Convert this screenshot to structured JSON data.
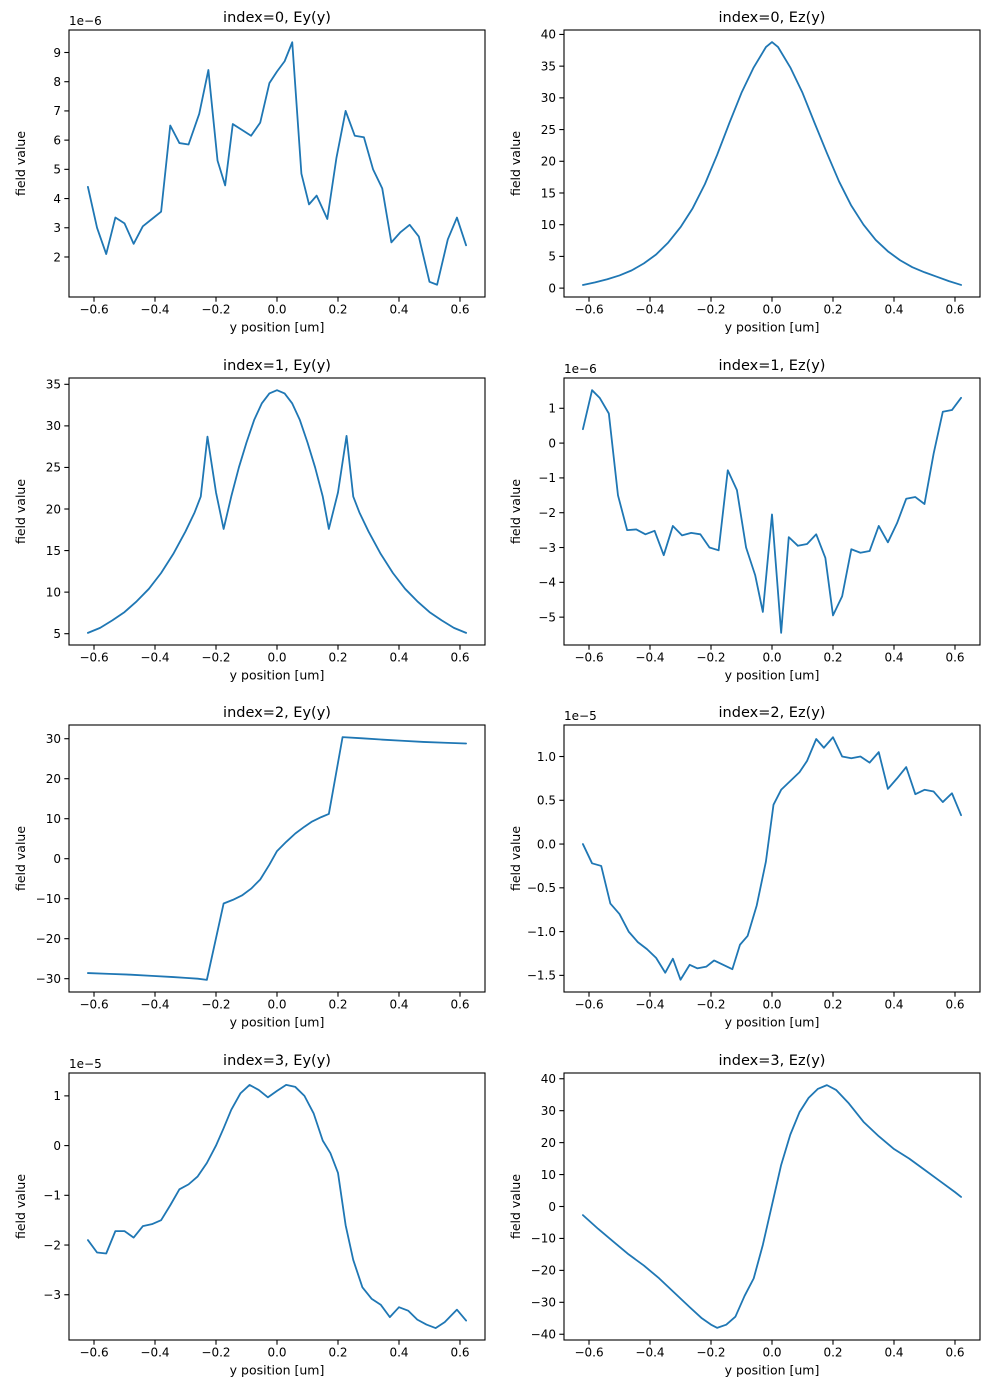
{
  "figure": {
    "background": "#ffffff",
    "text_color": "#000000",
    "line_color": "#1f77b4",
    "xticks": [
      -0.6,
      -0.4,
      -0.2,
      0.0,
      0.2,
      0.4,
      0.6
    ],
    "xtick_labels": [
      "−0.6",
      "−0.4",
      "−0.2",
      "0.0",
      "0.2",
      "0.4",
      "0.6"
    ]
  },
  "chart_data": [
    {
      "type": "line",
      "title": "index=0, Ey(y)",
      "xlabel": "y position [um]",
      "ylabel": "field value",
      "offset_label": "1e−6",
      "unit_scale": "1e-6",
      "legend": null,
      "grid": false,
      "xlim": [
        -0.682,
        0.682
      ],
      "ylim": [
        0.63,
        9.77
      ],
      "yticks": [
        2,
        3,
        4,
        5,
        6,
        7,
        8,
        9
      ],
      "ytick_labels": [
        "2",
        "3",
        "4",
        "5",
        "6",
        "7",
        "8",
        "9"
      ],
      "x": [
        -0.62,
        -0.59,
        -0.56,
        -0.53,
        -0.5,
        -0.47,
        -0.44,
        -0.41,
        -0.38,
        -0.35,
        -0.32,
        -0.29,
        -0.255,
        -0.225,
        -0.195,
        -0.17,
        -0.145,
        -0.115,
        -0.085,
        -0.055,
        -0.025,
        0.0,
        0.025,
        0.05,
        0.08,
        0.105,
        0.13,
        0.165,
        0.195,
        0.225,
        0.255,
        0.285,
        0.315,
        0.345,
        0.375,
        0.405,
        0.435,
        0.465,
        0.5,
        0.525,
        0.56,
        0.59,
        0.62
      ],
      "y": [
        4.4,
        3.0,
        2.1,
        3.35,
        3.15,
        2.45,
        3.05,
        3.3,
        3.55,
        6.5,
        5.9,
        5.85,
        6.9,
        8.4,
        5.3,
        4.45,
        6.55,
        6.35,
        6.15,
        6.6,
        7.95,
        8.35,
        8.7,
        9.35,
        4.85,
        3.8,
        4.1,
        3.3,
        5.4,
        7.0,
        6.15,
        6.1,
        5.0,
        4.35,
        2.5,
        2.85,
        3.1,
        2.7,
        1.15,
        1.05,
        2.6,
        3.35,
        2.4
      ]
    },
    {
      "type": "line",
      "title": "index=0, Ez(y)",
      "xlabel": "y position [um]",
      "ylabel": "field value",
      "offset_label": null,
      "unit_scale": "1",
      "legend": null,
      "grid": false,
      "xlim": [
        -0.682,
        0.682
      ],
      "ylim": [
        -1.4,
        40.7
      ],
      "yticks": [
        0,
        5,
        10,
        15,
        20,
        25,
        30,
        35,
        40
      ],
      "ytick_labels": [
        "0",
        "5",
        "10",
        "15",
        "20",
        "25",
        "30",
        "35",
        "40"
      ],
      "x": [
        -0.62,
        -0.58,
        -0.54,
        -0.5,
        -0.46,
        -0.42,
        -0.38,
        -0.34,
        -0.3,
        -0.26,
        -0.22,
        -0.18,
        -0.14,
        -0.1,
        -0.06,
        -0.02,
        0.0,
        0.02,
        0.06,
        0.1,
        0.14,
        0.18,
        0.22,
        0.26,
        0.3,
        0.34,
        0.38,
        0.42,
        0.46,
        0.5,
        0.54,
        0.58,
        0.62
      ],
      "y": [
        0.5,
        0.9,
        1.4,
        2.0,
        2.8,
        3.9,
        5.3,
        7.2,
        9.6,
        12.6,
        16.4,
        21.0,
        26.0,
        30.8,
        34.8,
        38.0,
        38.8,
        38.0,
        34.8,
        30.8,
        26.0,
        21.3,
        16.8,
        13.0,
        10.0,
        7.6,
        5.8,
        4.4,
        3.3,
        2.5,
        1.8,
        1.1,
        0.5
      ]
    },
    {
      "type": "line",
      "title": "index=1, Ey(y)",
      "xlabel": "y position [um]",
      "ylabel": "field value",
      "offset_label": null,
      "unit_scale": "1",
      "legend": null,
      "grid": false,
      "xlim": [
        -0.682,
        0.682
      ],
      "ylim": [
        3.64,
        35.76
      ],
      "yticks": [
        5,
        10,
        15,
        20,
        25,
        30,
        35
      ],
      "ytick_labels": [
        "5",
        "10",
        "15",
        "20",
        "25",
        "30",
        "35"
      ],
      "x": [
        -0.62,
        -0.58,
        -0.54,
        -0.5,
        -0.46,
        -0.42,
        -0.38,
        -0.34,
        -0.3,
        -0.27,
        -0.25,
        -0.228,
        -0.2,
        -0.175,
        -0.15,
        -0.125,
        -0.1,
        -0.075,
        -0.05,
        -0.025,
        0.0,
        0.025,
        0.05,
        0.075,
        0.1,
        0.125,
        0.15,
        0.17,
        0.2,
        0.228,
        0.25,
        0.27,
        0.3,
        0.34,
        0.38,
        0.42,
        0.46,
        0.5,
        0.54,
        0.58,
        0.62
      ],
      "y": [
        5.1,
        5.7,
        6.6,
        7.6,
        8.9,
        10.4,
        12.3,
        14.6,
        17.3,
        19.6,
        21.5,
        28.7,
        22.0,
        17.6,
        21.5,
        25.0,
        28.0,
        30.7,
        32.7,
        33.9,
        34.3,
        33.9,
        32.7,
        30.7,
        28.0,
        25.0,
        21.5,
        17.6,
        22.0,
        28.8,
        21.5,
        19.6,
        17.3,
        14.6,
        12.3,
        10.4,
        8.9,
        7.6,
        6.6,
        5.7,
        5.1
      ]
    },
    {
      "type": "line",
      "title": "index=1, Ez(y)",
      "xlabel": "y position [um]",
      "ylabel": "field value",
      "offset_label": "1e−6",
      "unit_scale": "1e-6",
      "legend": null,
      "grid": false,
      "xlim": [
        -0.682,
        0.682
      ],
      "ylim": [
        -5.8,
        1.87
      ],
      "yticks": [
        -5,
        -4,
        -3,
        -2,
        -1,
        0,
        1
      ],
      "ytick_labels": [
        "−5",
        "−4",
        "−3",
        "−2",
        "−1",
        "0",
        "1"
      ],
      "x": [
        -0.62,
        -0.59,
        -0.565,
        -0.535,
        -0.505,
        -0.475,
        -0.445,
        -0.415,
        -0.385,
        -0.355,
        -0.325,
        -0.295,
        -0.265,
        -0.235,
        -0.205,
        -0.175,
        -0.145,
        -0.115,
        -0.085,
        -0.055,
        -0.03,
        0.0,
        0.03,
        0.055,
        0.085,
        0.115,
        0.145,
        0.175,
        0.2,
        0.23,
        0.26,
        0.29,
        0.32,
        0.35,
        0.38,
        0.41,
        0.44,
        0.47,
        0.5,
        0.53,
        0.56,
        0.59,
        0.62
      ],
      "y": [
        0.4,
        1.52,
        1.3,
        0.85,
        -1.5,
        -2.5,
        -2.48,
        -2.62,
        -2.52,
        -3.22,
        -2.38,
        -2.65,
        -2.58,
        -2.62,
        -3.0,
        -3.08,
        -0.78,
        -1.35,
        -3.0,
        -3.8,
        -4.85,
        -2.05,
        -5.45,
        -2.7,
        -2.95,
        -2.9,
        -2.62,
        -3.3,
        -4.95,
        -4.4,
        -3.05,
        -3.15,
        -3.1,
        -2.38,
        -2.85,
        -2.3,
        -1.6,
        -1.55,
        -1.75,
        -0.3,
        0.9,
        0.95,
        1.3
      ]
    },
    {
      "type": "line",
      "title": "index=2, Ey(y)",
      "xlabel": "y position [um]",
      "ylabel": "field value",
      "offset_label": null,
      "unit_scale": "1",
      "legend": null,
      "grid": false,
      "xlim": [
        -0.682,
        0.682
      ],
      "ylim": [
        -33.33,
        33.43
      ],
      "yticks": [
        -30,
        -20,
        -10,
        0,
        10,
        20,
        30
      ],
      "ytick_labels": [
        "−30",
        "−20",
        "−10",
        "0",
        "10",
        "20",
        "30"
      ],
      "x": [
        -0.62,
        -0.55,
        -0.48,
        -0.41,
        -0.34,
        -0.3,
        -0.26,
        -0.23,
        -0.175,
        -0.145,
        -0.115,
        -0.085,
        -0.055,
        -0.025,
        0.0,
        0.03,
        0.06,
        0.09,
        0.115,
        0.145,
        0.17,
        0.215,
        0.28,
        0.34,
        0.41,
        0.48,
        0.55,
        0.62
      ],
      "y": [
        -28.6,
        -28.8,
        -29.0,
        -29.3,
        -29.6,
        -29.8,
        -30.0,
        -30.3,
        -11.2,
        -10.3,
        -9.2,
        -7.5,
        -5.2,
        -1.5,
        1.9,
        4.2,
        6.3,
        8.0,
        9.3,
        10.4,
        11.2,
        30.4,
        30.1,
        29.8,
        29.5,
        29.2,
        29.0,
        28.8
      ]
    },
    {
      "type": "line",
      "title": "index=2, Ez(y)",
      "xlabel": "y position [um]",
      "ylabel": "field value",
      "offset_label": "1e−5",
      "unit_scale": "1e-5",
      "legend": null,
      "grid": false,
      "xlim": [
        -0.682,
        0.682
      ],
      "ylim": [
        -1.69,
        1.36
      ],
      "yticks": [
        -1.5,
        -1.0,
        -0.5,
        0.0,
        0.5,
        1.0
      ],
      "ytick_labels": [
        "−1.5",
        "−1.0",
        "−0.5",
        "0.0",
        "0.5",
        "1.0"
      ],
      "x": [
        -0.62,
        -0.59,
        -0.56,
        -0.53,
        -0.5,
        -0.47,
        -0.44,
        -0.41,
        -0.38,
        -0.35,
        -0.325,
        -0.3,
        -0.27,
        -0.245,
        -0.215,
        -0.19,
        -0.16,
        -0.13,
        -0.105,
        -0.08,
        -0.05,
        -0.02,
        0.005,
        0.03,
        0.06,
        0.09,
        0.115,
        0.145,
        0.17,
        0.2,
        0.23,
        0.26,
        0.29,
        0.32,
        0.35,
        0.38,
        0.41,
        0.44,
        0.47,
        0.5,
        0.53,
        0.56,
        0.59,
        0.62
      ],
      "y": [
        0.0,
        -0.22,
        -0.25,
        -0.68,
        -0.8,
        -1.0,
        -1.12,
        -1.2,
        -1.3,
        -1.47,
        -1.31,
        -1.55,
        -1.38,
        -1.42,
        -1.4,
        -1.33,
        -1.38,
        -1.43,
        -1.15,
        -1.05,
        -0.7,
        -0.2,
        0.45,
        0.62,
        0.72,
        0.82,
        0.95,
        1.2,
        1.1,
        1.22,
        1.0,
        0.98,
        1.0,
        0.93,
        1.05,
        0.63,
        0.75,
        0.88,
        0.57,
        0.62,
        0.6,
        0.48,
        0.58,
        0.33
      ]
    },
    {
      "type": "line",
      "title": "index=3, Ey(y)",
      "xlabel": "y position [um]",
      "ylabel": "field value",
      "offset_label": "1e−5",
      "unit_scale": "1e-5",
      "legend": null,
      "grid": false,
      "xlim": [
        -0.682,
        0.682
      ],
      "ylim": [
        -3.91,
        1.46
      ],
      "yticks": [
        -3,
        -2,
        -1,
        0,
        1
      ],
      "ytick_labels": [
        "−3",
        "−2",
        "−1",
        "0",
        "1"
      ],
      "x": [
        -0.62,
        -0.59,
        -0.56,
        -0.53,
        -0.5,
        -0.47,
        -0.44,
        -0.41,
        -0.38,
        -0.35,
        -0.32,
        -0.29,
        -0.26,
        -0.23,
        -0.2,
        -0.175,
        -0.15,
        -0.12,
        -0.09,
        -0.06,
        -0.03,
        0.0,
        0.03,
        0.06,
        0.09,
        0.12,
        0.15,
        0.175,
        0.2,
        0.225,
        0.25,
        0.28,
        0.31,
        0.34,
        0.37,
        0.4,
        0.43,
        0.46,
        0.49,
        0.52,
        0.55,
        0.59,
        0.62
      ],
      "y": [
        -1.9,
        -2.15,
        -2.17,
        -1.72,
        -1.72,
        -1.85,
        -1.62,
        -1.58,
        -1.5,
        -1.2,
        -0.88,
        -0.78,
        -0.62,
        -0.35,
        0.0,
        0.35,
        0.72,
        1.05,
        1.22,
        1.12,
        0.97,
        1.1,
        1.22,
        1.18,
        1.0,
        0.65,
        0.1,
        -0.15,
        -0.55,
        -1.6,
        -2.3,
        -2.85,
        -3.08,
        -3.2,
        -3.45,
        -3.25,
        -3.32,
        -3.5,
        -3.6,
        -3.67,
        -3.55,
        -3.3,
        -3.52
      ]
    },
    {
      "type": "line",
      "title": "index=3, Ez(y)",
      "xlabel": "y position [um]",
      "ylabel": "field value",
      "offset_label": null,
      "unit_scale": "1",
      "legend": null,
      "grid": false,
      "xlim": [
        -0.682,
        0.682
      ],
      "ylim": [
        -41.8,
        41.8
      ],
      "yticks": [
        -40,
        -30,
        -20,
        -10,
        0,
        10,
        20,
        30,
        40
      ],
      "ytick_labels": [
        "−40",
        "−30",
        "−20",
        "−10",
        "0",
        "10",
        "20",
        "30",
        "40"
      ],
      "x": [
        -0.62,
        -0.57,
        -0.52,
        -0.47,
        -0.42,
        -0.37,
        -0.32,
        -0.27,
        -0.23,
        -0.2,
        -0.18,
        -0.15,
        -0.12,
        -0.09,
        -0.06,
        -0.03,
        0.0,
        0.03,
        0.06,
        0.09,
        0.12,
        0.15,
        0.18,
        0.21,
        0.25,
        0.3,
        0.35,
        0.4,
        0.45,
        0.5,
        0.55,
        0.6,
        0.62
      ],
      "y": [
        -2.7,
        -7.0,
        -11.0,
        -15.0,
        -18.5,
        -22.5,
        -27.0,
        -31.5,
        -35.0,
        -37.0,
        -38.0,
        -37.0,
        -34.5,
        -28.0,
        -22.5,
        -12.0,
        0.5,
        13.0,
        22.5,
        29.5,
        34.0,
        36.8,
        38.0,
        36.5,
        32.5,
        26.5,
        22.0,
        18.0,
        15.0,
        11.5,
        8.0,
        4.5,
        3.0
      ]
    }
  ]
}
